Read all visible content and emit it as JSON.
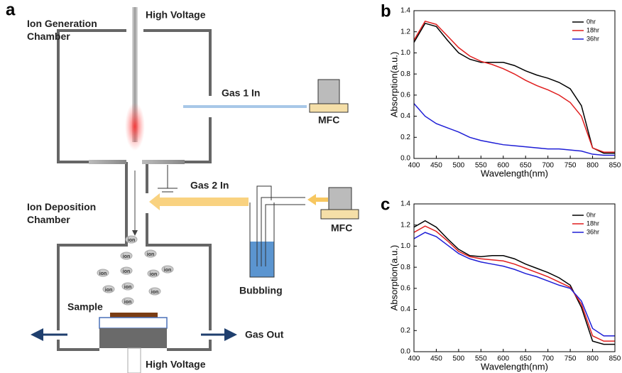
{
  "diagram": {
    "panel_label": "a",
    "top_voltage": "High Voltage",
    "gen_chamber": "Ion Generation Chamber",
    "gas1": "Gas 1 In",
    "mfc1": "MFC",
    "gas2": "Gas 2 In",
    "mfc2": "MFC",
    "dep_chamber": "Ion Deposition Chamber",
    "bubbling": "Bubbling",
    "sample": "Sample",
    "gas_out": "Gas Out",
    "bottom_voltage": "High Voltage",
    "ions": [
      "ion",
      "ion",
      "ion",
      "ion",
      "ion",
      "ion",
      "ion",
      "ion",
      "ion",
      "ion",
      "ion"
    ]
  },
  "chart_data": [
    {
      "type": "line",
      "panel_label": "b",
      "x_label": "Wavelength(nm)",
      "y_label": "Absorption(a.u.)",
      "x": [
        400,
        425,
        450,
        475,
        500,
        525,
        550,
        575,
        600,
        625,
        650,
        675,
        700,
        725,
        750,
        775,
        800,
        825,
        850
      ],
      "xlim": [
        400,
        850
      ],
      "xticks": [
        400,
        450,
        500,
        550,
        600,
        650,
        700,
        750,
        800,
        850
      ],
      "ylim": [
        0,
        1.4
      ],
      "yticks": [
        {
          "value": 0,
          "label": "0.0"
        },
        0.2,
        0.4,
        0.6,
        0.8,
        {
          "value": 1,
          "label": "1.0"
        },
        1.2,
        1.4
      ],
      "legend": "upper right",
      "series": [
        {
          "name": "0hr",
          "color": "#000000",
          "values": [
            1.1,
            1.28,
            1.25,
            1.12,
            1.0,
            0.94,
            0.91,
            0.91,
            0.91,
            0.88,
            0.83,
            0.79,
            0.76,
            0.72,
            0.66,
            0.5,
            0.1,
            0.05,
            0.05
          ]
        },
        {
          "name": "18hr",
          "color": "#e01e1e",
          "values": [
            1.12,
            1.3,
            1.27,
            1.16,
            1.05,
            0.97,
            0.92,
            0.89,
            0.85,
            0.8,
            0.74,
            0.69,
            0.65,
            0.6,
            0.53,
            0.4,
            0.1,
            0.06,
            0.06
          ]
        },
        {
          "name": "36hr",
          "color": "#1e1ed6",
          "values": [
            0.52,
            0.4,
            0.33,
            0.29,
            0.25,
            0.2,
            0.17,
            0.15,
            0.13,
            0.12,
            0.11,
            0.1,
            0.09,
            0.09,
            0.08,
            0.07,
            0.04,
            0.03,
            0.03
          ]
        }
      ]
    },
    {
      "type": "line",
      "panel_label": "c",
      "x_label": "Wavelength(nm)",
      "y_label": "Absorption(a.u.)",
      "x": [
        400,
        425,
        450,
        475,
        500,
        525,
        550,
        575,
        600,
        625,
        650,
        675,
        700,
        725,
        750,
        775,
        800,
        825,
        850
      ],
      "xlim": [
        400,
        850
      ],
      "xticks": [
        400,
        450,
        500,
        550,
        600,
        650,
        700,
        750,
        800,
        850
      ],
      "ylim": [
        0,
        1.4
      ],
      "yticks": [
        {
          "value": 0,
          "label": "0.0"
        },
        0.2,
        0.4,
        0.6,
        0.8,
        {
          "value": 1,
          "label": "1.0"
        },
        1.2,
        1.4
      ],
      "legend": "upper right",
      "series": [
        {
          "name": "0hr",
          "color": "#000000",
          "values": [
            1.18,
            1.24,
            1.18,
            1.07,
            0.97,
            0.91,
            0.9,
            0.91,
            0.91,
            0.88,
            0.83,
            0.79,
            0.75,
            0.7,
            0.63,
            0.42,
            0.1,
            0.07,
            0.07
          ]
        },
        {
          "name": "18hr",
          "color": "#e01e1e",
          "values": [
            1.13,
            1.19,
            1.14,
            1.05,
            0.95,
            0.9,
            0.88,
            0.87,
            0.86,
            0.83,
            0.79,
            0.75,
            0.71,
            0.66,
            0.61,
            0.45,
            0.15,
            0.1,
            0.1
          ]
        },
        {
          "name": "36hr",
          "color": "#1e1ed6",
          "values": [
            1.07,
            1.13,
            1.09,
            1.01,
            0.93,
            0.88,
            0.85,
            0.83,
            0.81,
            0.78,
            0.74,
            0.71,
            0.67,
            0.63,
            0.6,
            0.48,
            0.22,
            0.15,
            0.15
          ]
        }
      ]
    }
  ]
}
